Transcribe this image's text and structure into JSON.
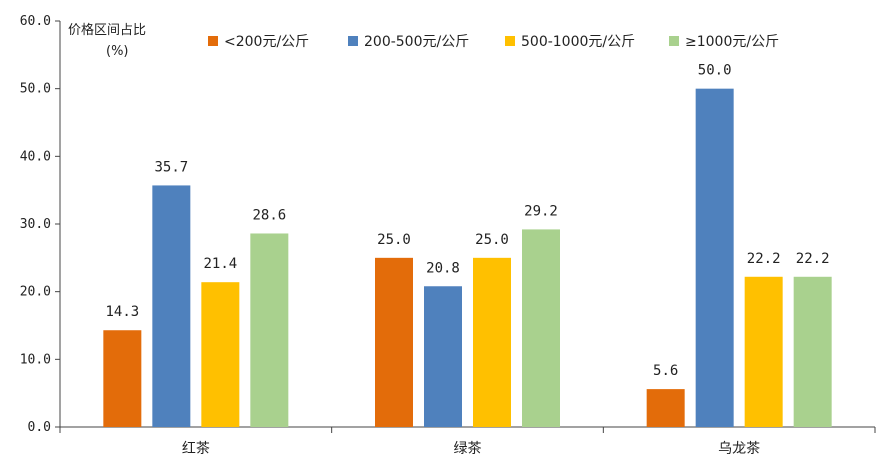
{
  "chart_data": {
    "type": "bar",
    "ylabel_line1": "价格区间占比",
    "ylabel_line2": "(%)",
    "categories": [
      "红茶",
      "绿茶",
      "乌龙茶"
    ],
    "series": [
      {
        "name": "<200元/公斤",
        "color": "#E36C0A",
        "values": [
          14.3,
          25.0,
          5.6
        ]
      },
      {
        "name": "200-500元/公斤",
        "color": "#4F81BD",
        "values": [
          35.7,
          20.8,
          50.0
        ]
      },
      {
        "name": "500-1000元/公斤",
        "color": "#FFC000",
        "values": [
          21.4,
          25.0,
          22.2
        ]
      },
      {
        "name": "≥1000元/公斤",
        "color": "#A9D18E",
        "values": [
          28.6,
          29.2,
          22.2
        ]
      }
    ],
    "ylim": [
      0,
      60
    ],
    "yticks": [
      "0.0",
      "10.0",
      "20.0",
      "30.0",
      "40.0",
      "50.0",
      "60.0"
    ],
    "value_labels": [
      [
        "14.3",
        "25.0",
        "5.6"
      ],
      [
        "35.7",
        "20.8",
        "50.0"
      ],
      [
        "21.4",
        "25.0",
        "22.2"
      ],
      [
        "28.6",
        "29.2",
        "22.2"
      ]
    ],
    "legend_position": "top",
    "grid": false
  }
}
